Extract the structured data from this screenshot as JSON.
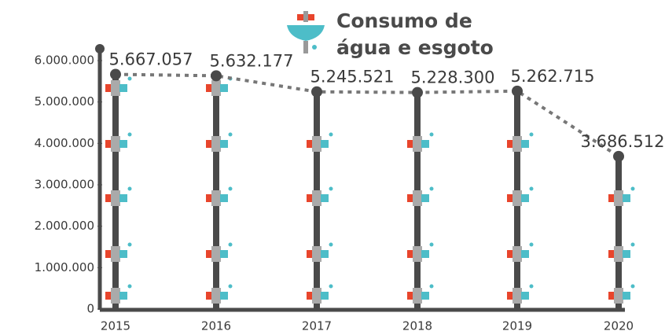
{
  "chart_data": {
    "type": "bar",
    "title": "Consumo de água e esgoto",
    "categories": [
      "2015",
      "2016",
      "2017",
      "2018",
      "2019",
      "2020"
    ],
    "values": [
      5667057,
      5632177,
      5245521,
      5228300,
      5262715,
      3686512
    ],
    "value_labels": [
      "5.667.057",
      "5.632.177",
      "5.245.521",
      "5.228.300",
      "5.262.715",
      "3.686.512"
    ],
    "color": "#4a4a4a",
    "ylim": [
      0,
      6000000
    ],
    "yticks": [
      0,
      {
        "value": 1000000,
        "label": "1.000.000"
      },
      {
        "value": 2000000,
        "label": "2.000.000"
      },
      {
        "value": 3000000,
        "label": "3.000.000"
      },
      {
        "value": 4000000,
        "label": "4.000.000"
      },
      {
        "value": 5000000,
        "label": "5.000.000"
      },
      {
        "value": 6000000,
        "label": "6.000.000"
      }
    ]
  }
}
